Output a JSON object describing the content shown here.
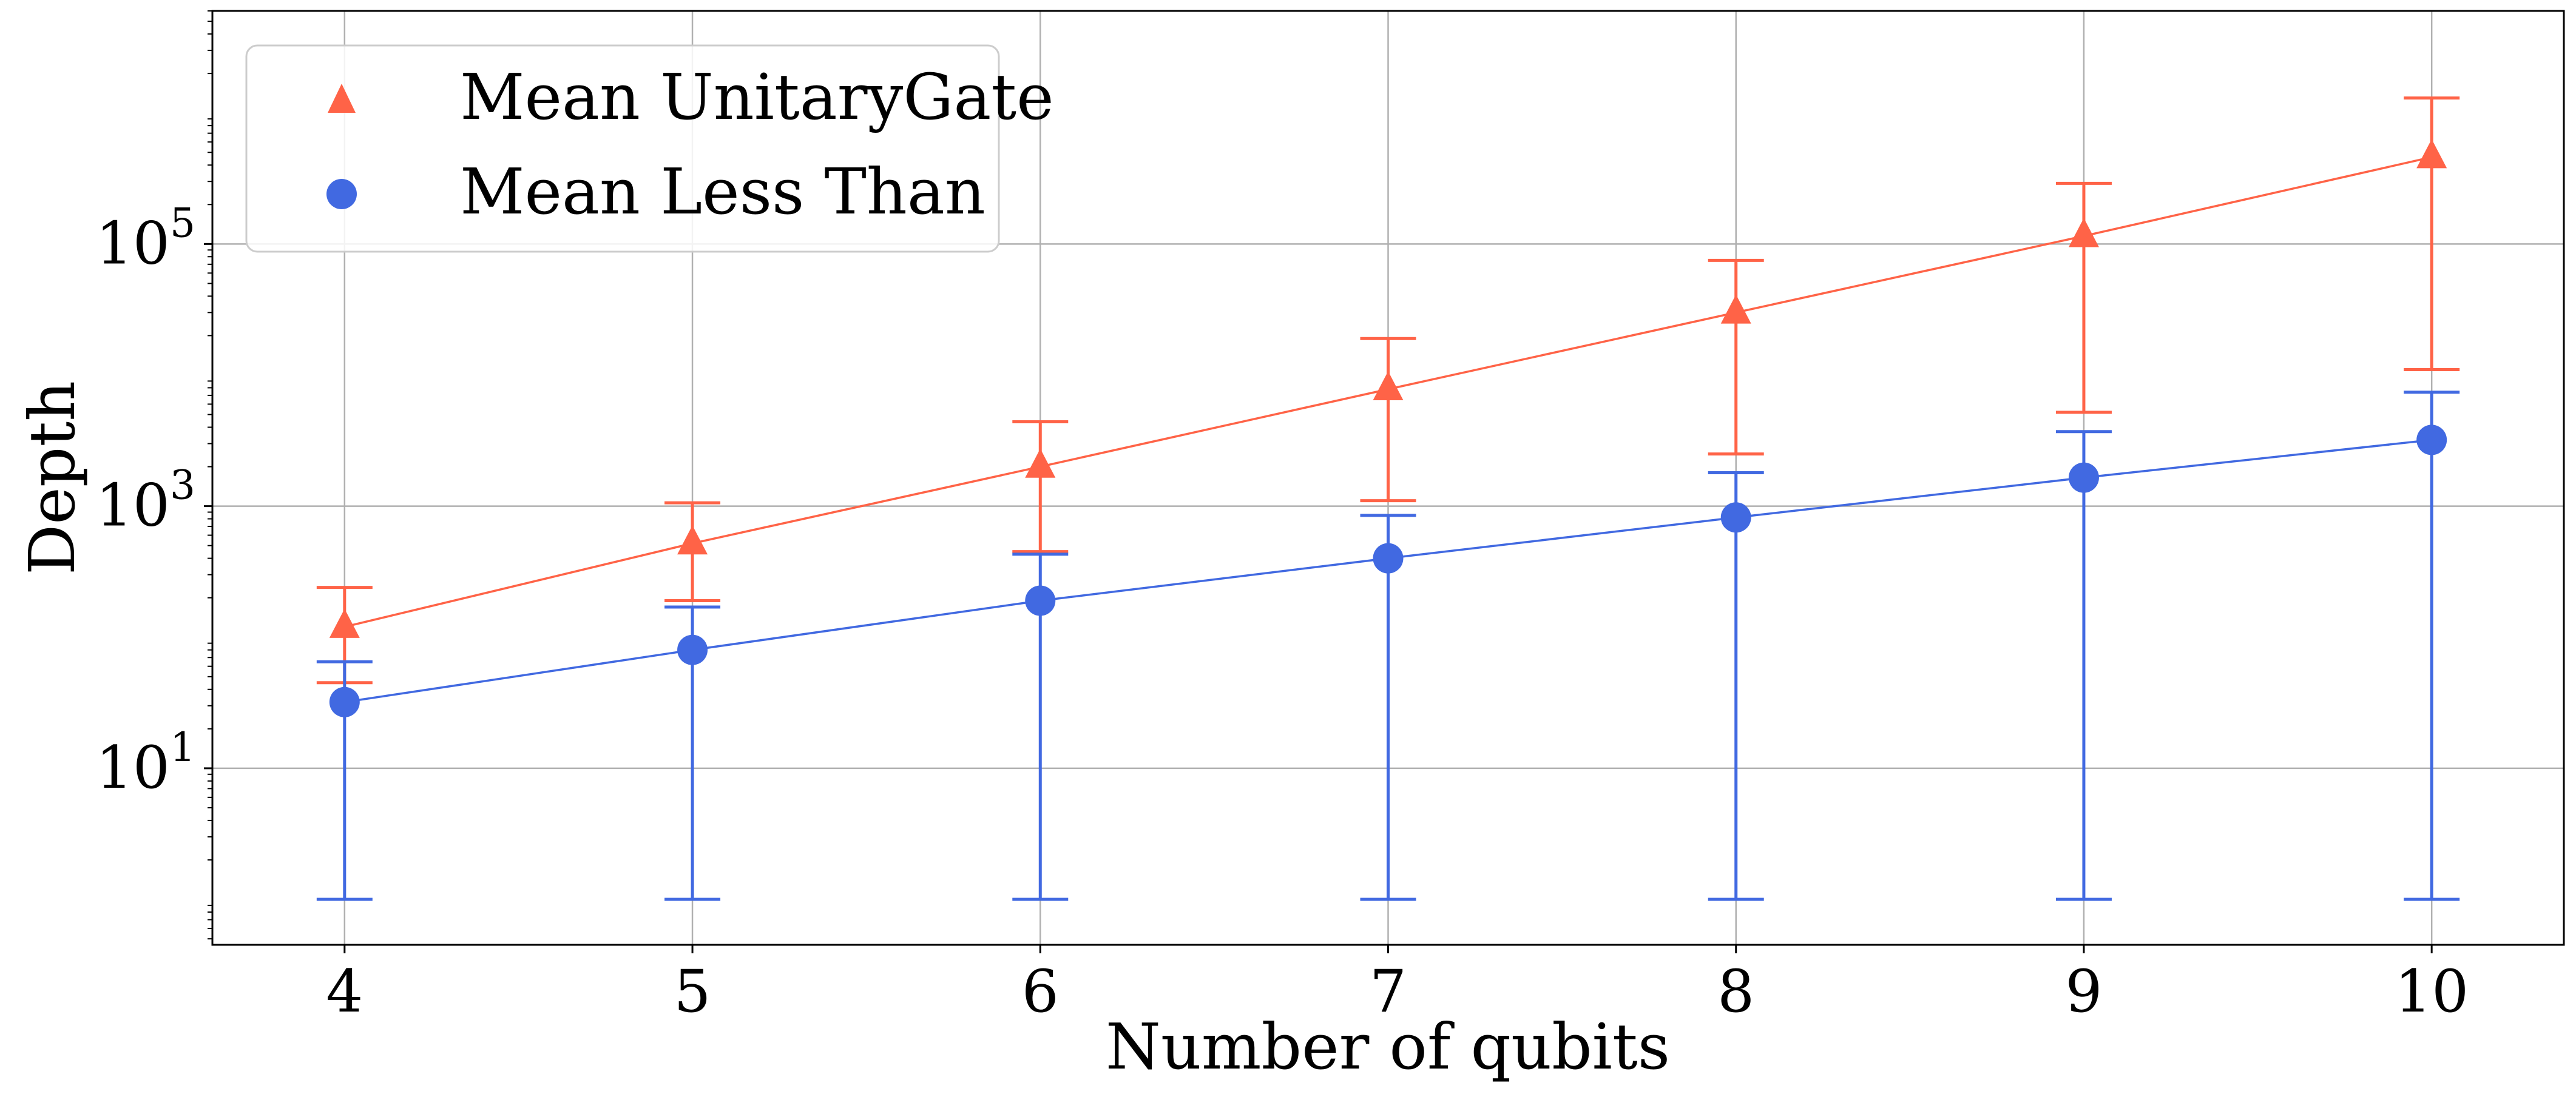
{
  "chart_data": {
    "type": "line",
    "x": [
      4,
      5,
      6,
      7,
      8,
      9,
      10
    ],
    "xlabel": "Number of qubits",
    "ylabel": "Depth",
    "xlim": [
      3.62,
      10.38
    ],
    "ylim": [
      0.45,
      6000000
    ],
    "yscale": "log",
    "grid": true,
    "legend_position": "top-left",
    "x_ticks": [
      "4",
      "5",
      "6",
      "7",
      "8",
      "9",
      "10"
    ],
    "y_ticks": [
      {
        "value": 10,
        "base": "10",
        "exp": "1"
      },
      {
        "value": 1000,
        "base": "10",
        "exp": "3"
      },
      {
        "value": 100000,
        "base": "10",
        "exp": "5"
      }
    ],
    "series": [
      {
        "name": "Mean UnitaryGate",
        "marker": "triangle",
        "color": "#FF6347",
        "values": [
          120,
          520,
          2000,
          7800,
          30000,
          115000,
          460000
        ],
        "err_low": [
          45,
          190,
          450,
          1100,
          2500,
          5200,
          11000
        ],
        "err_high": [
          240,
          1060,
          4400,
          19000,
          75000,
          290000,
          1300000
        ]
      },
      {
        "name": "Mean Less Than",
        "marker": "circle",
        "color": "#4169E1",
        "values": [
          32,
          80,
          190,
          400,
          820,
          1650,
          3200
        ],
        "err_low": [
          1,
          1,
          1,
          1,
          1,
          1,
          1
        ],
        "err_high": [
          65,
          170,
          430,
          850,
          1800,
          3700,
          7400
        ]
      }
    ]
  }
}
